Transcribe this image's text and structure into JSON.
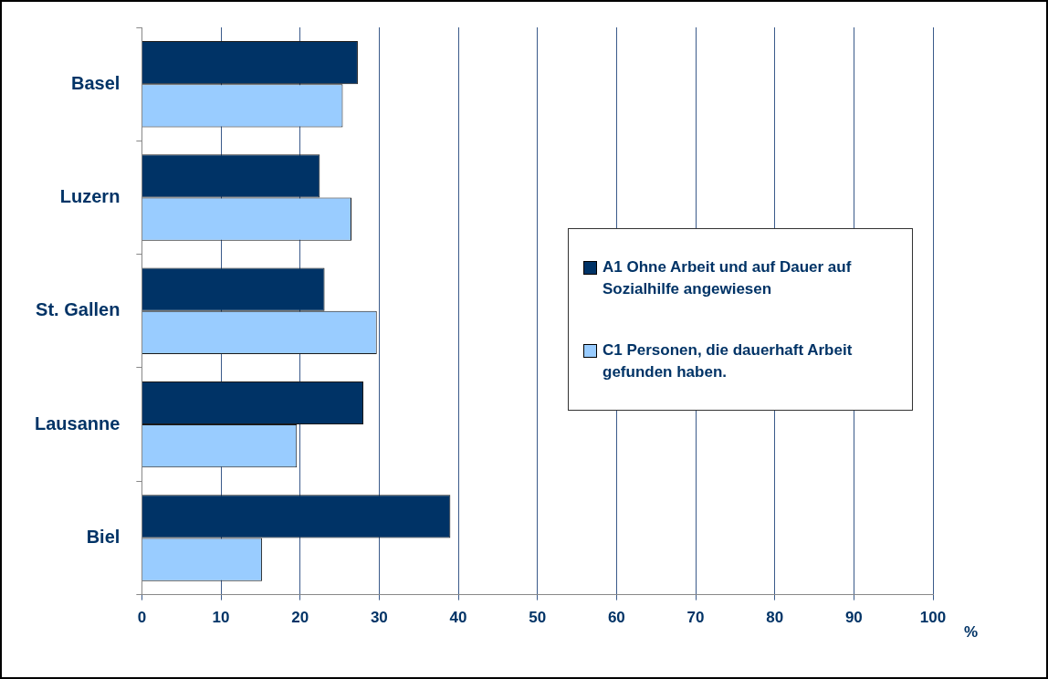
{
  "chart_data": {
    "type": "bar",
    "orientation": "horizontal",
    "xlabel": "%",
    "categories": [
      "Basel",
      "Luzern",
      "St. Gallen",
      "Lausanne",
      "Biel"
    ],
    "series": [
      {
        "name": "A1 Ohne Arbeit und auf Dauer auf Sozialhilfe angewiesen",
        "color": "#003366",
        "values": [
          27.3,
          22.5,
          23.1,
          28.0,
          39.0
        ]
      },
      {
        "name": "C1  Personen, die dauerhaft Arbeit gefunden haben.",
        "color": "#99ccff",
        "values": [
          25.4,
          26.5,
          29.7,
          19.6,
          15.2
        ]
      }
    ],
    "xlim": [
      0,
      100
    ],
    "xticks": [
      0,
      10,
      20,
      30,
      40,
      50,
      60,
      70,
      80,
      90,
      100
    ],
    "grid": "x",
    "legend": "right"
  }
}
